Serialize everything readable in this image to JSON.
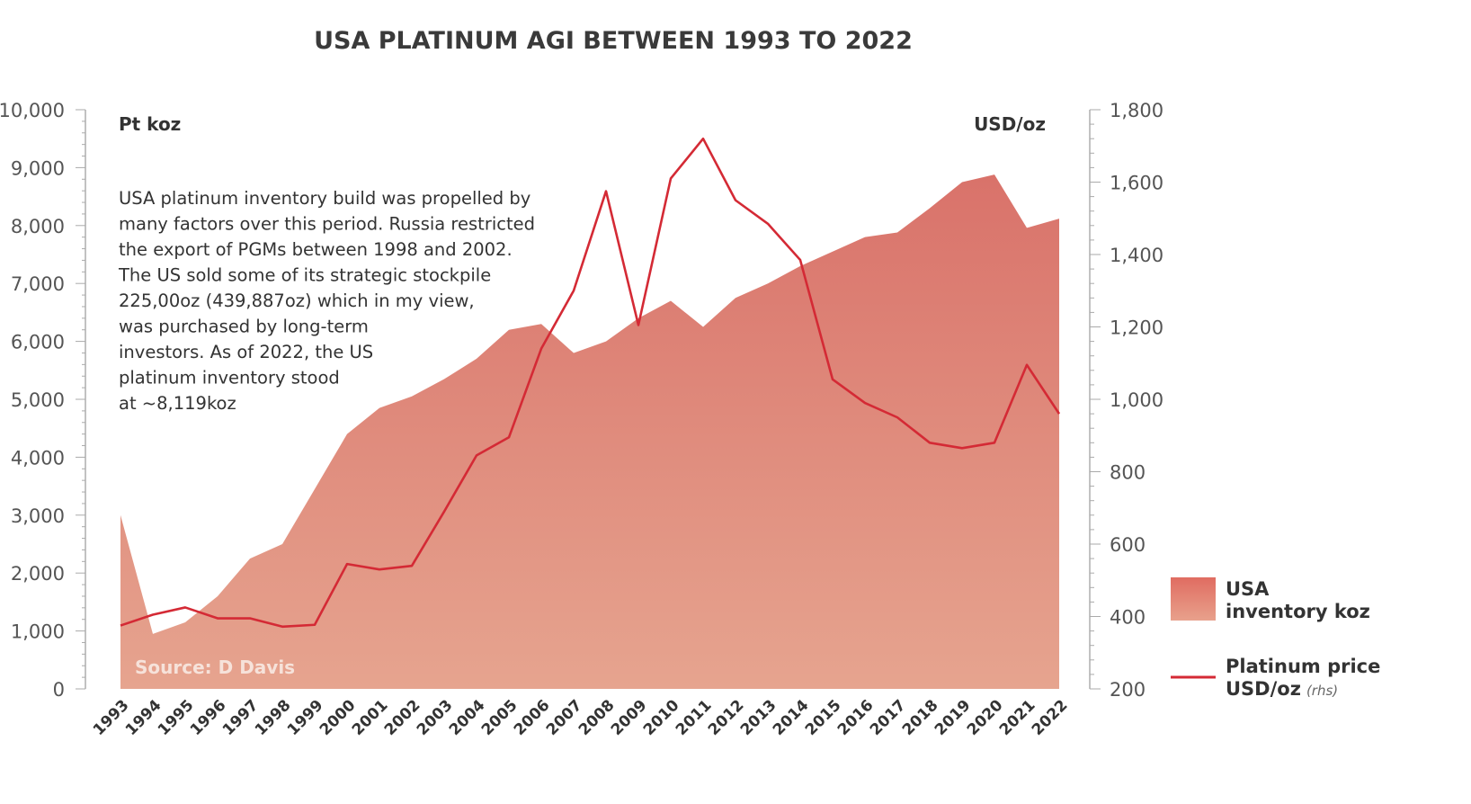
{
  "chart_data": {
    "type": "area",
    "title": "USA PLATINUM AGI BETWEEN 1993 TO 2022",
    "xlabel": "",
    "ylabel_left": "Pt koz",
    "ylabel_right": "USD/oz",
    "ylim_left": [
      0,
      10000
    ],
    "ylim_right": [
      200,
      1800
    ],
    "yticks_left": [
      "0",
      "1,000",
      "2,000",
      "3,000",
      "4,000",
      "5,000",
      "6,000",
      "7,000",
      "8,000",
      "9,000",
      "10,000"
    ],
    "yticks_right": [
      "200",
      "400",
      "600",
      "800",
      "1,000",
      "1,200",
      "1,400",
      "1,600",
      "1,800"
    ],
    "grid": false,
    "legend_position": "bottom-right",
    "categories": [
      "1993",
      "1994",
      "1995",
      "1996",
      "1997",
      "1998",
      "1999",
      "2000",
      "2001",
      "2002",
      "2003",
      "2004",
      "2005",
      "2006",
      "2007",
      "2008",
      "2009",
      "2010",
      "2011",
      "2012",
      "2013",
      "2014",
      "2015",
      "2016",
      "2017",
      "2018",
      "2019",
      "2020",
      "2021",
      "2022"
    ],
    "series": [
      {
        "name": "USA inventory koz",
        "type": "area",
        "axis": "left",
        "color_top": "#d9726a",
        "color_bottom": "#e6a48f",
        "values": [
          3000,
          950,
          1150,
          1600,
          2250,
          2500,
          3450,
          4400,
          4850,
          5050,
          5350,
          5700,
          6200,
          6300,
          5800,
          6000,
          6400,
          6700,
          6250,
          6750,
          7000,
          7300,
          7550,
          7800,
          7880,
          8300,
          8750,
          8880,
          7960,
          8119
        ]
      },
      {
        "name": "Platinum price USD/oz",
        "name_suffix": "(rhs)",
        "type": "line",
        "axis": "right",
        "color": "#d42a35",
        "values": [
          375,
          405,
          425,
          395,
          395,
          372,
          377,
          545,
          530,
          540,
          690,
          845,
          895,
          1140,
          1300,
          1575,
          1205,
          1610,
          1720,
          1550,
          1485,
          1385,
          1055,
          990,
          950,
          880,
          865,
          880,
          1095,
          960
        ]
      }
    ],
    "annotation_lines": [
      "USA platinum inventory build was propelled by",
      "many factors over this period. Russia restricted",
      "the export of PGMs between 1998 and 2002.",
      "The US sold some of its strategic stockpile",
      "225,00oz (439,887oz) which in my view,",
      "was purchased by long-term",
      "investors. As of 2022, the US",
      "platinum inventory stood",
      "at ~8,119koz"
    ],
    "source": "Source: D Davis",
    "legend": [
      {
        "lines": [
          "USA",
          "inventory koz"
        ],
        "marker": "area-swatch"
      },
      {
        "lines": [
          "Platinum price",
          "USD/oz"
        ],
        "suffix": "(rhs)",
        "marker": "line"
      }
    ]
  }
}
